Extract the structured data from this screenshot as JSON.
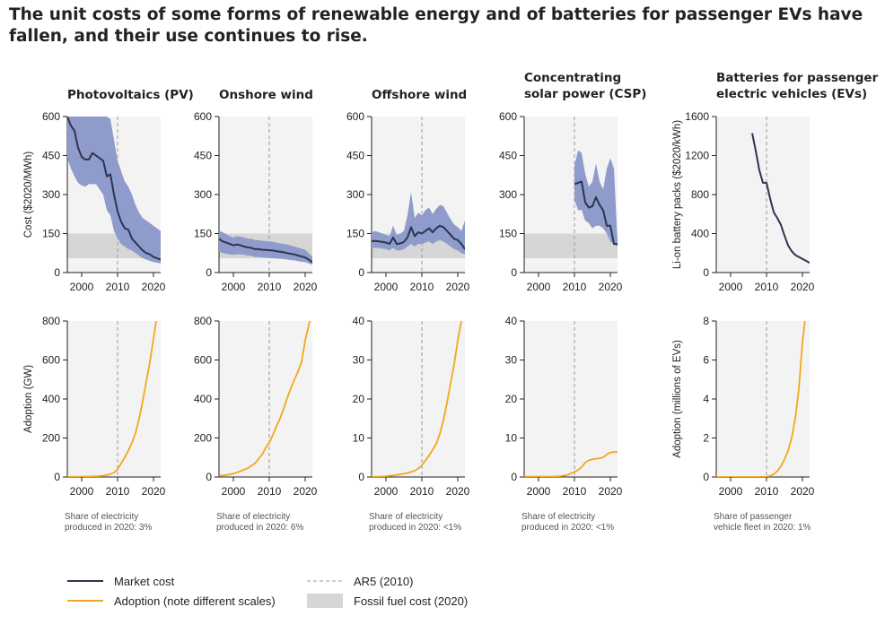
{
  "title": "The unit costs of some forms of renewable energy and of batteries for passenger EVs have fallen, and their use continues to rise.",
  "colors": {
    "cost_line": "#2b3552",
    "cost_band": "#8f9bca",
    "adoption": "#f3a71c",
    "fossil_band": "#d6d6d6",
    "panel_bg": "#f3f3f3",
    "ar5_line": "#999999"
  },
  "legend": [
    {
      "label": "Market cost",
      "kind": "cost-line"
    },
    {
      "label": "Adoption (note different scales)",
      "kind": "adoption-line"
    },
    {
      "label": "AR5 (2010)",
      "kind": "ar5-dashed"
    },
    {
      "label": "Fossil fuel cost (2020)",
      "kind": "fossil-band"
    }
  ],
  "chart_data": [
    {
      "type": "line",
      "panel": "Photovoltaics (PV) cost",
      "title": "Photovoltaics (PV)",
      "ylabel": "Cost ($2020/MWh)",
      "xlim": [
        1996,
        2022
      ],
      "ylim": [
        0,
        600
      ],
      "xticks": [
        2000,
        2010,
        2020
      ],
      "yticks": [
        0,
        150,
        300,
        450,
        600
      ],
      "fossil_band": [
        55,
        150
      ],
      "ar5_year": 2010,
      "series": [
        {
          "kind": "market-cost",
          "x": [
            1996,
            1997,
            1998,
            1999,
            2000,
            2001,
            2002,
            2003,
            2004,
            2005,
            2006,
            2007,
            2008,
            2009,
            2010,
            2011,
            2012,
            2013,
            2014,
            2015,
            2016,
            2017,
            2018,
            2019,
            2020,
            2021,
            2022
          ],
          "values": [
            600,
            565,
            545,
            480,
            445,
            435,
            435,
            460,
            450,
            440,
            430,
            370,
            378,
            300,
            235,
            195,
            170,
            165,
            130,
            115,
            100,
            85,
            75,
            70,
            60,
            55,
            50
          ],
          "band_low": [
            440,
            400,
            370,
            345,
            335,
            330,
            340,
            340,
            340,
            320,
            300,
            240,
            220,
            160,
            130,
            110,
            100,
            90,
            85,
            75,
            65,
            55,
            50,
            45,
            40,
            38,
            35
          ],
          "band_high": [
            600,
            600,
            600,
            600,
            600,
            600,
            600,
            600,
            600,
            600,
            600,
            600,
            590,
            510,
            430,
            390,
            350,
            330,
            300,
            260,
            230,
            210,
            200,
            190,
            180,
            170,
            160
          ]
        }
      ]
    },
    {
      "type": "line",
      "panel": "Onshore wind cost",
      "title": "Onshore wind",
      "ylabel": "",
      "xlim": [
        1996,
        2022
      ],
      "ylim": [
        0,
        600
      ],
      "xticks": [
        2000,
        2010,
        2020
      ],
      "yticks": [
        0,
        150,
        300,
        450,
        600
      ],
      "fossil_band": [
        55,
        150
      ],
      "ar5_year": 2010,
      "series": [
        {
          "kind": "market-cost",
          "x": [
            1996,
            1997,
            1998,
            1999,
            2000,
            2001,
            2002,
            2003,
            2004,
            2005,
            2006,
            2007,
            2008,
            2009,
            2010,
            2011,
            2012,
            2013,
            2014,
            2015,
            2016,
            2017,
            2018,
            2019,
            2020,
            2021,
            2022
          ],
          "values": [
            130,
            120,
            115,
            110,
            105,
            108,
            105,
            100,
            97,
            95,
            90,
            90,
            88,
            87,
            86,
            85,
            82,
            80,
            78,
            75,
            72,
            70,
            65,
            62,
            58,
            50,
            40
          ],
          "band_low": [
            80,
            75,
            72,
            70,
            68,
            70,
            70,
            68,
            65,
            65,
            60,
            60,
            58,
            57,
            56,
            55,
            54,
            53,
            52,
            50,
            48,
            47,
            44,
            42,
            40,
            35,
            30
          ],
          "band_high": [
            160,
            155,
            148,
            140,
            135,
            140,
            138,
            135,
            130,
            130,
            125,
            125,
            122,
            121,
            120,
            118,
            115,
            112,
            110,
            108,
            104,
            100,
            96,
            92,
            88,
            75,
            60
          ]
        }
      ]
    },
    {
      "type": "line",
      "panel": "Offshore wind cost",
      "title": "Offshore wind",
      "ylabel": "",
      "xlim": [
        1996,
        2022
      ],
      "ylim": [
        0,
        600
      ],
      "xticks": [
        2000,
        2010,
        2020
      ],
      "yticks": [
        0,
        150,
        300,
        450,
        600
      ],
      "fossil_band": [
        55,
        150
      ],
      "ar5_year": 2010,
      "series": [
        {
          "kind": "market-cost",
          "x": [
            1996,
            1997,
            1998,
            1999,
            2000,
            2001,
            2002,
            2003,
            2004,
            2005,
            2006,
            2007,
            2008,
            2009,
            2010,
            2011,
            2012,
            2013,
            2014,
            2015,
            2016,
            2017,
            2018,
            2019,
            2020,
            2021,
            2022
          ],
          "values": [
            120,
            122,
            120,
            118,
            115,
            110,
            135,
            110,
            112,
            118,
            135,
            175,
            140,
            155,
            150,
            160,
            170,
            155,
            170,
            180,
            175,
            160,
            145,
            130,
            125,
            110,
            90
          ],
          "band_low": [
            95,
            95,
            95,
            92,
            90,
            85,
            95,
            85,
            85,
            90,
            100,
            110,
            100,
            110,
            110,
            115,
            120,
            110,
            120,
            125,
            120,
            110,
            100,
            90,
            85,
            75,
            70
          ],
          "band_high": [
            155,
            160,
            155,
            150,
            145,
            140,
            180,
            145,
            150,
            160,
            220,
            310,
            210,
            230,
            220,
            240,
            250,
            225,
            245,
            260,
            255,
            230,
            205,
            185,
            175,
            160,
            200
          ]
        }
      ]
    },
    {
      "type": "line",
      "panel": "Concentrating solar power (CSP) cost",
      "title": "Concentrating solar power (CSP)",
      "ylabel": "",
      "xlim": [
        1996,
        2022
      ],
      "ylim": [
        0,
        600
      ],
      "xticks": [
        2000,
        2010,
        2020
      ],
      "yticks": [
        0,
        150,
        300,
        450,
        600
      ],
      "fossil_band": [
        55,
        150
      ],
      "ar5_year": 2010,
      "series": [
        {
          "kind": "market-cost",
          "x": [
            2010,
            2011,
            2012,
            2013,
            2014,
            2015,
            2016,
            2017,
            2018,
            2019,
            2020,
            2021,
            2022
          ],
          "values": [
            340,
            345,
            350,
            270,
            250,
            255,
            290,
            260,
            240,
            180,
            180,
            110,
            110
          ],
          "band_low": [
            280,
            240,
            240,
            200,
            190,
            170,
            180,
            180,
            170,
            150,
            120,
            110,
            100
          ],
          "band_high": [
            410,
            470,
            460,
            380,
            330,
            350,
            420,
            350,
            320,
            400,
            440,
            400,
            120
          ]
        }
      ]
    },
    {
      "type": "line",
      "panel": "Batteries for passenger electric vehicles (EVs) cost",
      "title": "Batteries for passenger electric vehicles (EVs)",
      "ylabel": "Li-on battery packs ($2020/kWh)",
      "xlim": [
        1996,
        2022
      ],
      "ylim": [
        0,
        1600
      ],
      "xticks": [
        2000,
        2010,
        2020
      ],
      "yticks": [
        0,
        400,
        800,
        1200,
        1600
      ],
      "fossil_band": null,
      "ar5_year": 2010,
      "series": [
        {
          "kind": "market-cost",
          "x": [
            2006,
            2007,
            2008,
            2009,
            2010,
            2011,
            2012,
            2013,
            2014,
            2015,
            2016,
            2017,
            2018,
            2019,
            2020,
            2021,
            2022
          ],
          "values": [
            1430,
            1250,
            1050,
            920,
            920,
            760,
            620,
            560,
            490,
            380,
            280,
            220,
            180,
            160,
            140,
            120,
            100
          ]
        }
      ]
    },
    {
      "type": "line",
      "panel": "Photovoltaics (PV) adoption",
      "title": "",
      "ylabel": "Adoption (GW)",
      "xlim": [
        1996,
        2022
      ],
      "ylim": [
        0,
        800
      ],
      "xticks": [
        2000,
        2010,
        2020
      ],
      "yticks": [
        0,
        200,
        400,
        600,
        800
      ],
      "ar5_year": 2010,
      "note": "Share of electricity produced in 2020: 3%",
      "note_lines": [
        "Share of electricity",
        "produced in 2020: 3%"
      ],
      "series": [
        {
          "kind": "adoption",
          "x": [
            1996,
            1998,
            2000,
            2002,
            2004,
            2006,
            2008,
            2009,
            2010,
            2011,
            2012,
            2013,
            2014,
            2015,
            2016,
            2017,
            2018,
            2019,
            2020,
            2021,
            2022
          ],
          "values": [
            0.5,
            0.7,
            1.2,
            2,
            3.5,
            6,
            15,
            22,
            40,
            70,
            100,
            135,
            175,
            225,
            300,
            390,
            490,
            590,
            710,
            830,
            950
          ]
        }
      ]
    },
    {
      "type": "line",
      "panel": "Onshore wind adoption",
      "title": "",
      "ylabel": "",
      "xlim": [
        1996,
        2022
      ],
      "ylim": [
        0,
        800
      ],
      "xticks": [
        2000,
        2010,
        2020
      ],
      "yticks": [
        0,
        200,
        400,
        600,
        800
      ],
      "ar5_year": 2010,
      "note": "Share of electricity produced in 2020: 6%",
      "note_lines": [
        "Share of electricity",
        "produced in 2020: 6%"
      ],
      "series": [
        {
          "kind": "adoption",
          "x": [
            1996,
            1998,
            2000,
            2002,
            2004,
            2006,
            2008,
            2009,
            2010,
            2011,
            2012,
            2013,
            2014,
            2015,
            2016,
            2017,
            2018,
            2019,
            2020,
            2021,
            2022
          ],
          "values": [
            6,
            10,
            17,
            30,
            45,
            70,
            115,
            150,
            175,
            215,
            260,
            300,
            350,
            405,
            455,
            500,
            540,
            590,
            700,
            780,
            850
          ]
        }
      ]
    },
    {
      "type": "line",
      "panel": "Offshore wind adoption",
      "title": "",
      "ylabel": "",
      "xlim": [
        1996,
        2022
      ],
      "ylim": [
        0,
        40
      ],
      "xticks": [
        2000,
        2010,
        2020
      ],
      "yticks": [
        0,
        10,
        20,
        30,
        40
      ],
      "ar5_year": 2010,
      "note": "Share of electricity produced in 2020: <1%",
      "note_lines": [
        "Share of electricity",
        "produced in 2020: <1%"
      ],
      "series": [
        {
          "kind": "adoption",
          "x": [
            1996,
            1998,
            2000,
            2002,
            2004,
            2006,
            2008,
            2009,
            2010,
            2011,
            2012,
            2013,
            2014,
            2015,
            2016,
            2017,
            2018,
            2019,
            2020,
            2021,
            2022
          ],
          "values": [
            0,
            0.1,
            0.2,
            0.4,
            0.7,
            1,
            1.6,
            2.2,
            3,
            4.2,
            5.5,
            7,
            8.5,
            11,
            14.5,
            19,
            24,
            29,
            35,
            40,
            45
          ]
        }
      ]
    },
    {
      "type": "line",
      "panel": "Concentrating solar power (CSP) adoption",
      "title": "",
      "ylabel": "",
      "xlim": [
        1996,
        2022
      ],
      "ylim": [
        0,
        40
      ],
      "xticks": [
        2000,
        2010,
        2020
      ],
      "yticks": [
        0,
        10,
        20,
        30,
        40
      ],
      "ar5_year": 2010,
      "note": "Share of electricity produced in 2020: <1%",
      "note_lines": [
        "Share of electricity",
        "produced in 2020: <1%"
      ],
      "series": [
        {
          "kind": "adoption",
          "x": [
            1996,
            1998,
            2000,
            2002,
            2004,
            2006,
            2008,
            2009,
            2010,
            2011,
            2012,
            2013,
            2014,
            2015,
            2016,
            2017,
            2018,
            2019,
            2020,
            2021,
            2022
          ],
          "values": [
            0.1,
            0.1,
            0.1,
            0.1,
            0.1,
            0.2,
            0.5,
            0.9,
            1.3,
            1.8,
            2.5,
            3.7,
            4.3,
            4.5,
            4.7,
            4.8,
            5.0,
            5.8,
            6.3,
            6.4,
            6.5
          ]
        }
      ]
    },
    {
      "type": "line",
      "panel": "Batteries for passenger EVs adoption",
      "title": "",
      "ylabel": "Adoption (millions of EVs)",
      "xlim": [
        1996,
        2022
      ],
      "ylim": [
        0,
        8
      ],
      "xticks": [
        2000,
        2010,
        2020
      ],
      "yticks": [
        0,
        2,
        4,
        6,
        8
      ],
      "ar5_year": 2010,
      "note": "Share of passenger vehicle fleet in 2020: 1%",
      "note_lines": [
        "Share of passenger",
        "vehicle fleet in 2020: 1%"
      ],
      "series": [
        {
          "kind": "adoption",
          "x": [
            1996,
            1998,
            2000,
            2002,
            2004,
            2006,
            2008,
            2009,
            2010,
            2011,
            2012,
            2013,
            2014,
            2015,
            2016,
            2017,
            2018,
            2019,
            2020,
            2021,
            2022
          ],
          "values": [
            0,
            0,
            0,
            0,
            0,
            0,
            0,
            0.01,
            0.02,
            0.06,
            0.14,
            0.3,
            0.55,
            0.9,
            1.35,
            2.0,
            3.0,
            4.5,
            6.9,
            8.5,
            10
          ]
        }
      ]
    }
  ]
}
